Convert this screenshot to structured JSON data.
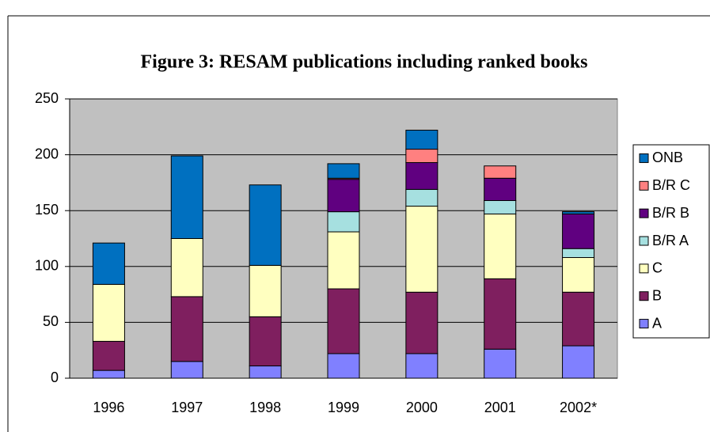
{
  "chart_data": {
    "type": "stacked_bar",
    "title": "Figure 3: RESAM publications including ranked books",
    "categories": [
      "1996",
      "1997",
      "1998",
      "1999",
      "2000",
      "2001",
      "2002*"
    ],
    "series": [
      {
        "name": "A",
        "color": "#8080ff",
        "values": [
          7,
          15,
          11,
          22,
          22,
          26,
          29
        ]
      },
      {
        "name": "B",
        "color": "#7f1f5f",
        "values": [
          26,
          58,
          44,
          58,
          55,
          63,
          48
        ]
      },
      {
        "name": "C",
        "color": "#ffffc0",
        "values": [
          51,
          52,
          46,
          51,
          77,
          58,
          31
        ]
      },
      {
        "name": "B/R A",
        "color": "#a6e0e0",
        "values": [
          0,
          0,
          0,
          18,
          15,
          12,
          8
        ]
      },
      {
        "name": "B/R B",
        "color": "#600080",
        "values": [
          0,
          0,
          0,
          29,
          24,
          20,
          31
        ]
      },
      {
        "name": "B/R C",
        "color": "#ff8080",
        "values": [
          0,
          0,
          0,
          1,
          12,
          11,
          0
        ]
      },
      {
        "name": "ONB",
        "color": "#0070c0",
        "values": [
          37,
          74,
          72,
          13,
          17,
          0,
          2
        ]
      }
    ],
    "ylim": [
      0,
      250
    ],
    "yticks": [
      0,
      50,
      100,
      150,
      200,
      250
    ],
    "grid": true,
    "legend": "right"
  }
}
